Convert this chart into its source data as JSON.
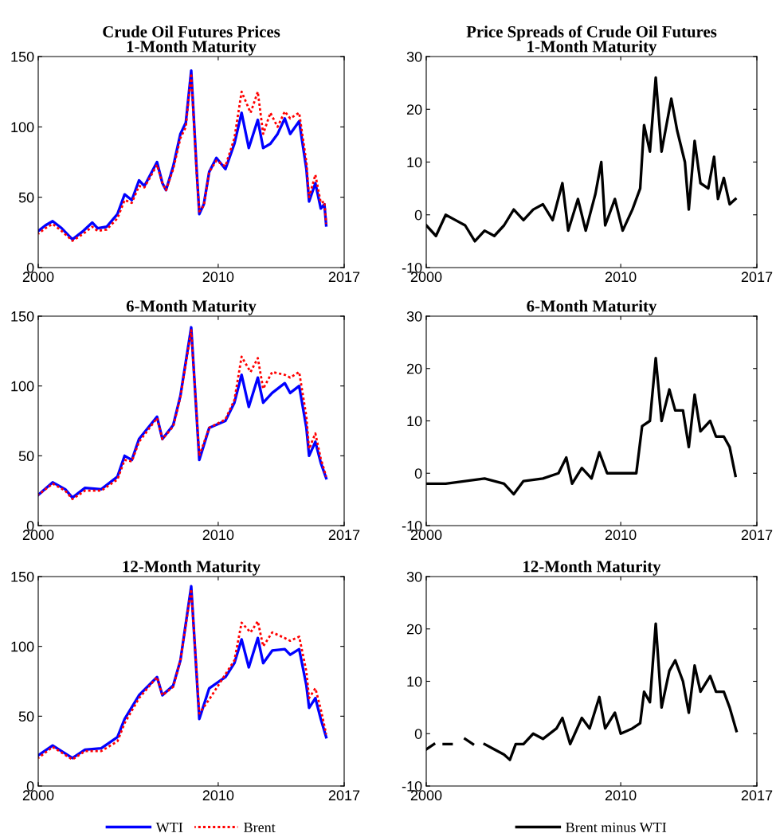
{
  "chart_data": [
    {
      "type": "line",
      "title": "Crude Oil Futures Prices",
      "subtitle": "1-Month Maturity",
      "xlim": [
        2000,
        2017
      ],
      "xticks": [
        2000,
        2010,
        2017
      ],
      "ylim": [
        0,
        150
      ],
      "yticks": [
        0,
        50,
        100,
        150
      ],
      "grid": false,
      "series": [
        {
          "color": "#0000ff",
          "line_style": "solid",
          "x": [
            2000,
            2000.4,
            2000.8,
            2001.3,
            2001.9,
            2002.5,
            2003.0,
            2003.3,
            2003.8,
            2004.4,
            2004.8,
            2005.2,
            2005.6,
            2005.9,
            2006.6,
            2006.9,
            2007.1,
            2007.5,
            2007.9,
            2008.2,
            2008.5,
            2008.8,
            2008.95,
            2009.2,
            2009.5,
            2009.9,
            2010.4,
            2010.9,
            2011.3,
            2011.7,
            2012.2,
            2012.5,
            2012.9,
            2013.3,
            2013.7,
            2014.0,
            2014.5,
            2014.9,
            2015.05,
            2015.4,
            2015.7,
            2015.9,
            2016.0
          ],
          "values": [
            26,
            30,
            33,
            28,
            20,
            26,
            32,
            28,
            29,
            38,
            52,
            48,
            62,
            58,
            75,
            60,
            55,
            72,
            95,
            103,
            140,
            70,
            38,
            45,
            68,
            78,
            70,
            88,
            110,
            85,
            105,
            85,
            88,
            95,
            106,
            95,
            104,
            70,
            47,
            60,
            42,
            45,
            30
          ]
        },
        {
          "color": "#ff0000",
          "line_style": "dotted",
          "x": [
            2000,
            2000.4,
            2000.8,
            2001.3,
            2001.9,
            2002.5,
            2003.0,
            2003.3,
            2003.8,
            2004.4,
            2004.8,
            2005.2,
            2005.6,
            2005.9,
            2006.6,
            2006.9,
            2007.1,
            2007.5,
            2007.9,
            2008.2,
            2008.5,
            2008.8,
            2008.95,
            2009.2,
            2009.5,
            2009.9,
            2010.4,
            2010.9,
            2011.3,
            2011.8,
            2012.2,
            2012.5,
            2012.9,
            2013.3,
            2013.7,
            2014.0,
            2014.5,
            2014.9,
            2015.05,
            2015.4,
            2015.7,
            2015.9,
            2016.0
          ],
          "values": [
            24,
            28,
            31,
            26,
            19,
            24,
            29,
            26,
            27,
            35,
            48,
            46,
            58,
            57,
            73,
            60,
            55,
            70,
            92,
            100,
            138,
            68,
            40,
            44,
            68,
            76,
            72,
            92,
            125,
            110,
            125,
            95,
            110,
            100,
            111,
            106,
            110,
            75,
            50,
            66,
            46,
            47,
            31
          ]
        }
      ]
    },
    {
      "type": "line",
      "title": "Price Spreads of Crude Oil Futures",
      "subtitle": "1-Month Maturity",
      "xlim": [
        2000,
        2017
      ],
      "xticks": [
        2000,
        2010,
        2017
      ],
      "ylim": [
        -10,
        30
      ],
      "yticks": [
        -10,
        0,
        10,
        20,
        30
      ],
      "grid": false,
      "series": [
        {
          "color": "#000000",
          "line_style": "solid",
          "x": [
            2000,
            2000.5,
            2001,
            2001.5,
            2002,
            2002.5,
            2003,
            2003.5,
            2004,
            2004.5,
            2005,
            2005.5,
            2006,
            2006.5,
            2007,
            2007.3,
            2007.8,
            2008.2,
            2008.7,
            2009.0,
            2009.2,
            2009.7,
            2010.1,
            2010.6,
            2011.0,
            2011.2,
            2011.5,
            2011.8,
            2012.1,
            2012.6,
            2012.9,
            2013.3,
            2013.5,
            2013.8,
            2014.1,
            2014.5,
            2014.8,
            2015.0,
            2015.3,
            2015.6,
            2015.9
          ],
          "values": [
            -2,
            -4,
            0,
            -1,
            -2,
            -5,
            -3,
            -4,
            -2,
            1,
            -1,
            1,
            2,
            -1,
            6,
            -3,
            3,
            -3,
            4,
            10,
            -2,
            3,
            -3,
            1,
            5,
            17,
            12,
            26,
            12,
            22,
            16,
            10,
            1,
            14,
            6,
            5,
            11,
            3,
            7,
            2,
            3
          ]
        }
      ]
    },
    {
      "type": "line",
      "title": "6-Month Maturity",
      "xlim": [
        2000,
        2017
      ],
      "xticks": [
        2000,
        2010,
        2017
      ],
      "ylim": [
        0,
        150
      ],
      "yticks": [
        0,
        50,
        100,
        150
      ],
      "grid": false,
      "series": [
        {
          "color": "#0000ff",
          "line_style": "solid",
          "x": [
            2000,
            2000.8,
            2001.5,
            2001.9,
            2002.6,
            2003.5,
            2004.4,
            2004.8,
            2005.2,
            2005.6,
            2006.6,
            2006.9,
            2007.5,
            2007.9,
            2008.5,
            2008.95,
            2009.5,
            2010.4,
            2010.9,
            2011.3,
            2011.7,
            2012.2,
            2012.5,
            2013.0,
            2013.7,
            2014.0,
            2014.5,
            2014.9,
            2015.05,
            2015.4,
            2015.7,
            2016.0
          ],
          "values": [
            22,
            31,
            26,
            20,
            27,
            26,
            35,
            50,
            47,
            62,
            78,
            62,
            72,
            93,
            142,
            47,
            70,
            75,
            88,
            108,
            85,
            106,
            88,
            95,
            102,
            95,
            100,
            70,
            50,
            60,
            45,
            34
          ]
        },
        {
          "color": "#ff0000",
          "line_style": "dotted",
          "x": [
            2000,
            2000.8,
            2001.5,
            2001.9,
            2002.6,
            2003.5,
            2004.4,
            2004.8,
            2005.2,
            2005.6,
            2006.6,
            2006.9,
            2007.5,
            2007.9,
            2008.5,
            2008.95,
            2009.5,
            2010.4,
            2010.9,
            2011.3,
            2011.8,
            2012.2,
            2012.5,
            2013.0,
            2013.7,
            2014.0,
            2014.5,
            2014.9,
            2015.05,
            2015.4,
            2015.7,
            2016.0
          ],
          "values": [
            22,
            30,
            25,
            19,
            25,
            25,
            33,
            47,
            46,
            60,
            77,
            62,
            71,
            92,
            140,
            50,
            70,
            76,
            90,
            121,
            110,
            120,
            98,
            110,
            108,
            106,
            110,
            78,
            55,
            66,
            48,
            35
          ]
        }
      ]
    },
    {
      "type": "line",
      "title": "6-Month Maturity",
      "xlim": [
        2000,
        2017
      ],
      "xticks": [
        2000,
        2010,
        2017
      ],
      "ylim": [
        -10,
        30
      ],
      "yticks": [
        -10,
        0,
        10,
        20,
        30
      ],
      "grid": false,
      "series": [
        {
          "color": "#000000",
          "line_style": "solid",
          "x": [
            2000,
            2001,
            2002,
            2003,
            2004,
            2004.5,
            2005,
            2006,
            2006.8,
            2007.2,
            2007.5,
            2008,
            2008.5,
            2008.9,
            2009.3,
            2010,
            2010.8,
            2011.1,
            2011.5,
            2011.8,
            2012.1,
            2012.5,
            2012.8,
            2013.2,
            2013.5,
            2013.8,
            2014.1,
            2014.6,
            2014.9,
            2015.3,
            2015.6,
            2015.9
          ],
          "values": [
            -2,
            -2,
            -1.5,
            -1,
            -2,
            -4,
            -1.5,
            -1,
            0,
            3,
            -2,
            1,
            -1,
            4,
            0,
            0,
            0,
            9,
            10,
            22,
            10,
            16,
            12,
            12,
            5,
            15,
            8,
            10,
            7,
            7,
            5,
            -0.5
          ]
        }
      ]
    },
    {
      "type": "line",
      "title": "12-Month Maturity",
      "xlim": [
        2000,
        2017
      ],
      "xticks": [
        2000,
        2010,
        2017
      ],
      "ylim": [
        0,
        150
      ],
      "yticks": [
        0,
        50,
        100,
        150
      ],
      "grid": false,
      "legend": "bottom",
      "series": [
        {
          "name": "WTI",
          "color": "#0000ff",
          "line_style": "solid",
          "x": [
            2000,
            2000.8,
            2001.9,
            2002.6,
            2003.5,
            2004.4,
            2004.8,
            2005.6,
            2006.6,
            2006.9,
            2007.5,
            2007.9,
            2008.5,
            2008.95,
            2009.5,
            2010.4,
            2010.9,
            2011.3,
            2011.7,
            2012.2,
            2012.5,
            2013.0,
            2013.7,
            2014.0,
            2014.5,
            2014.9,
            2015.05,
            2015.4,
            2015.7,
            2016.0
          ],
          "values": [
            22,
            29,
            20,
            26,
            27,
            35,
            48,
            65,
            78,
            65,
            72,
            90,
            143,
            48,
            70,
            78,
            88,
            105,
            85,
            106,
            88,
            97,
            98,
            94,
            98,
            72,
            56,
            63,
            48,
            35
          ]
        },
        {
          "name": "Brent",
          "color": "#ff0000",
          "line_style": "dotted",
          "x": [
            2000,
            2000.8,
            2001.9,
            2002.6,
            2003.5,
            2004.4,
            2004.8,
            2005.6,
            2006.6,
            2006.9,
            2007.5,
            2007.9,
            2008.5,
            2008.95,
            2009.5,
            2010.4,
            2010.9,
            2011.3,
            2011.8,
            2012.2,
            2012.5,
            2013.0,
            2013.7,
            2014.0,
            2014.5,
            2014.9,
            2015.05,
            2015.4,
            2015.7,
            2016.0
          ],
          "values": [
            20,
            28,
            19,
            25,
            25,
            32,
            45,
            63,
            78,
            65,
            71,
            90,
            141,
            52,
            62,
            80,
            90,
            117,
            110,
            118,
            100,
            110,
            106,
            104,
            107,
            82,
            63,
            70,
            55,
            37
          ]
        }
      ]
    },
    {
      "type": "line",
      "title": "12-Month Maturity",
      "xlim": [
        2000,
        2017
      ],
      "xticks": [
        2000,
        2010,
        2017
      ],
      "ylim": [
        -10,
        30
      ],
      "yticks": [
        -10,
        0,
        10,
        20,
        30
      ],
      "grid": false,
      "legend": "bottom",
      "series": [
        {
          "name": "Brent minus WTI",
          "color": "#000000",
          "line_style": "solid",
          "x": [
            2000,
            2000.4,
            2000.6,
            2000.9,
            2001.3,
            2001.6,
            2002.0,
            2002.4,
            2002.7,
            2003.0,
            2003.5,
            2004.0,
            2004.3,
            2004.6,
            2005,
            2005.5,
            2006,
            2006.7,
            2007.0,
            2007.4,
            2008,
            2008.4,
            2008.9,
            2009.2,
            2009.7,
            2010,
            2010.6,
            2011.0,
            2011.2,
            2011.5,
            2011.8,
            2012.1,
            2012.5,
            2012.8,
            2013.2,
            2013.5,
            2013.8,
            2014.1,
            2014.6,
            2014.9,
            2015.3,
            2015.6,
            2015.95
          ],
          "values": [
            -3,
            -2,
            null,
            -2,
            -2,
            null,
            -1,
            -2,
            null,
            -2,
            -3,
            -4,
            -5,
            -2,
            -2,
            0,
            -1,
            1,
            3,
            -2,
            3,
            1,
            7,
            1,
            4,
            0,
            1,
            2,
            8,
            6,
            21,
            5,
            12,
            14,
            10,
            4,
            13,
            8,
            11,
            8,
            8,
            5,
            0.5
          ]
        }
      ]
    }
  ]
}
